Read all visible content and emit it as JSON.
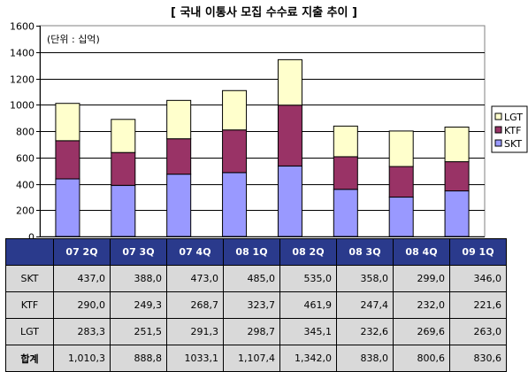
{
  "chart_data": {
    "type": "bar",
    "stacked": true,
    "title": "[ 국내 이통사 모집 수수료 지출 추이 ]",
    "unit_note": "(단위 : 십억)",
    "categories": [
      "07 2Q",
      "07 3Q",
      "07 4Q",
      "08 1Q",
      "08 2Q",
      "08 3Q",
      "08 4Q",
      "09 1Q"
    ],
    "ylim": [
      0,
      1600
    ],
    "yticks": [
      "0",
      "200",
      "400",
      "600",
      "800",
      "1000",
      "1200",
      "1400",
      "1600"
    ],
    "grid": true,
    "legend_position": "right",
    "series": [
      {
        "name": "SKT",
        "color": "#9999ff",
        "values": [
          437.0,
          388.0,
          473.0,
          485.0,
          535.0,
          358.0,
          299.0,
          346.0
        ]
      },
      {
        "name": "KTF",
        "color": "#993366",
        "values": [
          290.0,
          249.3,
          268.7,
          323.7,
          461.9,
          247.4,
          232.0,
          221.6
        ]
      },
      {
        "name": "LGT",
        "color": "#ffffcc",
        "values": [
          283.3,
          251.5,
          291.3,
          298.7,
          345.1,
          232.6,
          269.6,
          263.0
        ]
      }
    ],
    "legend_order": [
      "LGT",
      "KTF",
      "SKT"
    ]
  },
  "table": {
    "rows": [
      {
        "label": "SKT",
        "cells": [
          "437,0",
          "388,0",
          "473,0",
          "485,0",
          "535,0",
          "358,0",
          "299,0",
          "346,0"
        ]
      },
      {
        "label": "KTF",
        "cells": [
          "290,0",
          "249,3",
          "268,7",
          "323,7",
          "461,9",
          "247,4",
          "232,0",
          "221,6"
        ]
      },
      {
        "label": "LGT",
        "cells": [
          "283,3",
          "251,5",
          "291,3",
          "298,7",
          "345,1",
          "232,6",
          "269,6",
          "263,0"
        ]
      },
      {
        "label": "합계",
        "cells": [
          "1,010,3",
          "888,8",
          "1033,1",
          "1,107,4",
          "1,342,0",
          "838,0",
          "800,6",
          "830,6"
        ],
        "total": true
      }
    ]
  }
}
